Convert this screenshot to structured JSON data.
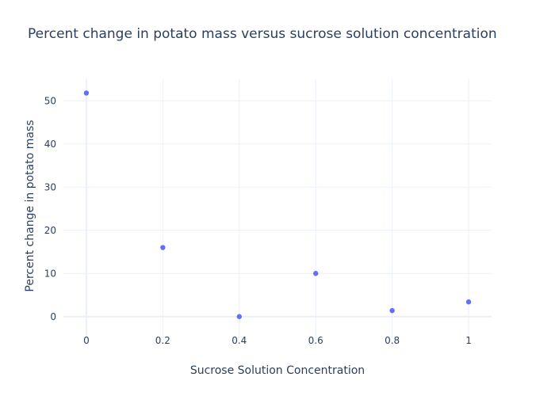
{
  "chart_data": {
    "type": "scatter",
    "title": "Percent change in potato mass versus sucrose solution concentration",
    "xlabel": "Sucrose Solution Concentration",
    "ylabel": "Percent change in potato mass",
    "x": [
      0,
      0.2,
      0.4,
      0.6,
      0.8,
      1
    ],
    "y": [
      51.8,
      16,
      0,
      10,
      1.4,
      3.4
    ],
    "xlim": [
      -0.06,
      1.06
    ],
    "ylim": [
      -5,
      55
    ],
    "x_ticks": [
      0,
      0.2,
      0.4,
      0.6,
      0.8,
      1
    ],
    "x_tick_labels": [
      "0",
      "0.2",
      "0.4",
      "0.6",
      "0.8",
      "1"
    ],
    "y_ticks": [
      0,
      10,
      20,
      30,
      40,
      50
    ],
    "y_tick_labels": [
      "0",
      "10",
      "20",
      "30",
      "40",
      "50"
    ],
    "grid": true,
    "marker_color": "#636efa",
    "text_color": "#2a3f5f",
    "grid_color": "#ebf0f8"
  }
}
